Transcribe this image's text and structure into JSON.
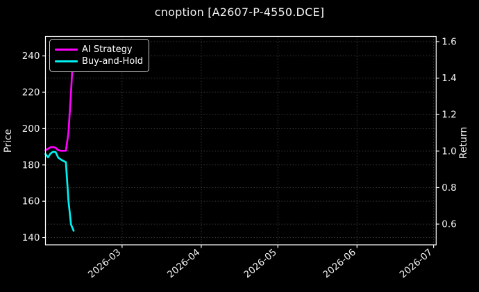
{
  "title": "cnoption [A2607-P-4550.DCE]",
  "chart_data": {
    "type": "line",
    "title": "cnoption [A2607-P-4550.DCE]",
    "xlabel": "",
    "ylabel_left": "Price",
    "ylabel_right": "Return",
    "grid": true,
    "grid_style": "dotted",
    "legend_position": "upper left",
    "background_color": "#000000",
    "text_color": "#f2f2f2",
    "spine_color": "#ffffff",
    "grid_color": "#383838",
    "xlim": [
      "2026-01-30",
      "2026-07-02"
    ],
    "ylim_left": [
      136.0,
      250.74
    ],
    "ylim_right": [
      0.4863,
      1.6286
    ],
    "x_ticks": [
      {
        "date": "2026-03-01",
        "label": "2026-03"
      },
      {
        "date": "2026-04-01",
        "label": "2026-04"
      },
      {
        "date": "2026-05-01",
        "label": "2026-05"
      },
      {
        "date": "2026-06-01",
        "label": "2026-06"
      },
      {
        "date": "2026-07-01",
        "label": "2026-07"
      }
    ],
    "left_ticks": [
      240,
      220,
      200,
      180,
      160,
      140
    ],
    "right_ticks": [
      "1.6",
      "1.4",
      "1.2",
      "1.0",
      "0.8",
      "0.6"
    ],
    "x": [
      "2026-01-30",
      "2026-01-31",
      "2026-02-01",
      "2026-02-02",
      "2026-02-03",
      "2026-02-04",
      "2026-02-05",
      "2026-02-06",
      "2026-02-07",
      "2026-02-08",
      "2026-02-09",
      "2026-02-10"
    ],
    "series": [
      {
        "name": "AI Strategy",
        "axis": "right",
        "color": "#ff00ff",
        "values": [
          1.004,
          1.013,
          1.021,
          1.022,
          1.018,
          1.005,
          1.002,
          1.002,
          1.002,
          1.1,
          1.32,
          1.588
        ]
      },
      {
        "name": "Buy-and-Hold",
        "axis": "left",
        "color": "#00f0f0",
        "values": [
          186.0,
          184.2,
          186.3,
          187.2,
          187.0,
          184.0,
          183.0,
          182.2,
          181.5,
          160.3,
          147.2,
          143.8
        ]
      }
    ]
  }
}
